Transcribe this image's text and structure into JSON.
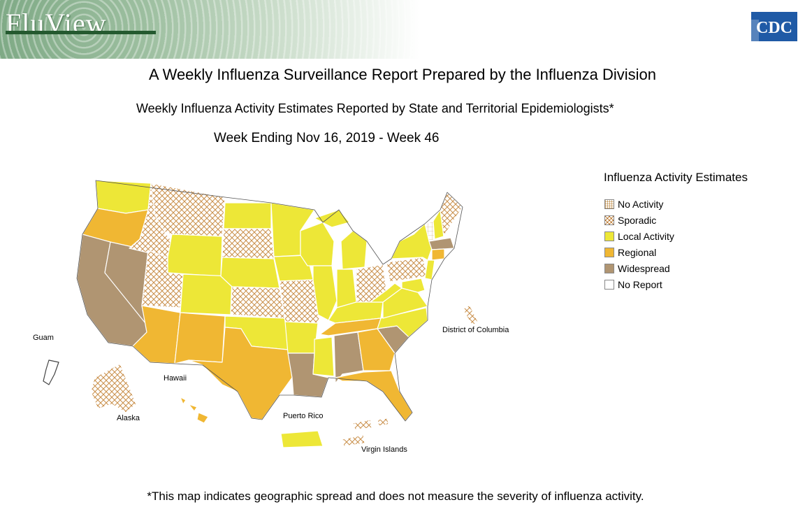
{
  "header": {
    "brand": "FluView",
    "cdc_logo": "CDC"
  },
  "titles": {
    "main": "A Weekly Influenza Surveillance Report Prepared by the Influenza Division",
    "subtitle": "Weekly Influenza Activity Estimates Reported by State and Territorial Epidemiologists*",
    "week": "Week Ending Nov 16, 2019 - Week 46"
  },
  "legend": {
    "title": "Influenza Activity Estimates",
    "items": [
      {
        "key": "no_activity",
        "label": "No Activity",
        "color": "#ffffff",
        "pattern": "grid"
      },
      {
        "key": "sporadic",
        "label": "Sporadic",
        "color": "#ffffff",
        "pattern": "crosshatch"
      },
      {
        "key": "local",
        "label": "Local Activity",
        "color": "#ede737"
      },
      {
        "key": "regional",
        "label": "Regional",
        "color": "#f0b733"
      },
      {
        "key": "widespread",
        "label": "Widespread",
        "color": "#b09572"
      },
      {
        "key": "no_report",
        "label": "No Report",
        "color": "#ffffff"
      }
    ]
  },
  "regions": {
    "WA": "local",
    "OR": "regional",
    "CA": "widespread",
    "NV": "widespread",
    "ID": "sporadic",
    "MT": "sporadic",
    "WY": "local",
    "UT": "sporadic",
    "CO": "local",
    "AZ": "regional",
    "NM": "regional",
    "ND": "local",
    "SD": "sporadic",
    "NE": "local",
    "KS": "sporadic",
    "OK": "local",
    "TX": "regional",
    "MN": "local",
    "IA": "local",
    "MO": "sporadic",
    "AR": "local",
    "LA": "widespread",
    "WI": "local",
    "IL": "local",
    "MI": "local",
    "IN": "local",
    "OH": "sporadic",
    "KY": "local",
    "TN": "regional",
    "MS": "local",
    "AL": "widespread",
    "GA": "regional",
    "FL": "regional",
    "SC": "widespread",
    "NC": "local",
    "VA": "local",
    "WV": "local",
    "PA": "sporadic",
    "NY": "local",
    "VT": "no_activity",
    "NH": "local",
    "ME": "sporadic",
    "MA": "widespread",
    "CT": "regional",
    "NJ": "local",
    "MD": "local",
    "AK": "sporadic",
    "HI": "regional",
    "DC": "sporadic",
    "GU": "no_report",
    "PR": "local",
    "VI": "sporadic"
  },
  "map_labels": {
    "dc": "District of Columbia",
    "guam": "Guam",
    "hawaii": "Hawaii",
    "alaska": "Alaska",
    "puerto_rico": "Puerto Rico",
    "virgin_islands": "Virgin Islands"
  },
  "footnote": "*This map indicates geographic spread and does not measure the severity of influenza activity."
}
